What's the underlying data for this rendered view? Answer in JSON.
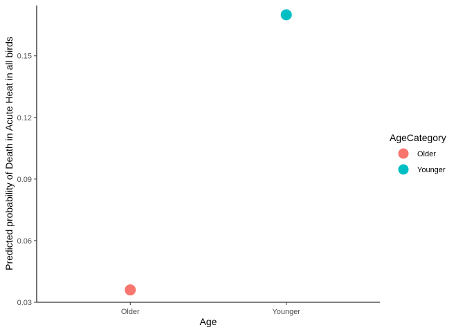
{
  "chart_data": {
    "type": "scatter",
    "xlabel": "Age",
    "ylabel": "Predicted probability of Death in Acute Heat in all birds",
    "categories": [
      "Older",
      "Younger"
    ],
    "series": [
      {
        "name": "Older",
        "color": "#F8766D",
        "points": [
          {
            "x": "Older",
            "y": 0.036
          }
        ]
      },
      {
        "name": "Younger",
        "color": "#00BFC4",
        "points": [
          {
            "x": "Younger",
            "y": 0.17
          }
        ]
      }
    ],
    "ylim": [
      0.03,
      0.1745
    ],
    "yticks": [
      0.03,
      0.06,
      0.09,
      0.12,
      0.15
    ],
    "ytick_labels": [
      "0.03",
      "0.06",
      "0.09",
      "0.12",
      "0.15"
    ],
    "grid": false,
    "legend": {
      "title": "AgeCategory",
      "placement": "right",
      "entries": [
        {
          "label": "Older",
          "color": "#F8766D"
        },
        {
          "label": "Younger",
          "color": "#00BFC4"
        }
      ]
    }
  }
}
